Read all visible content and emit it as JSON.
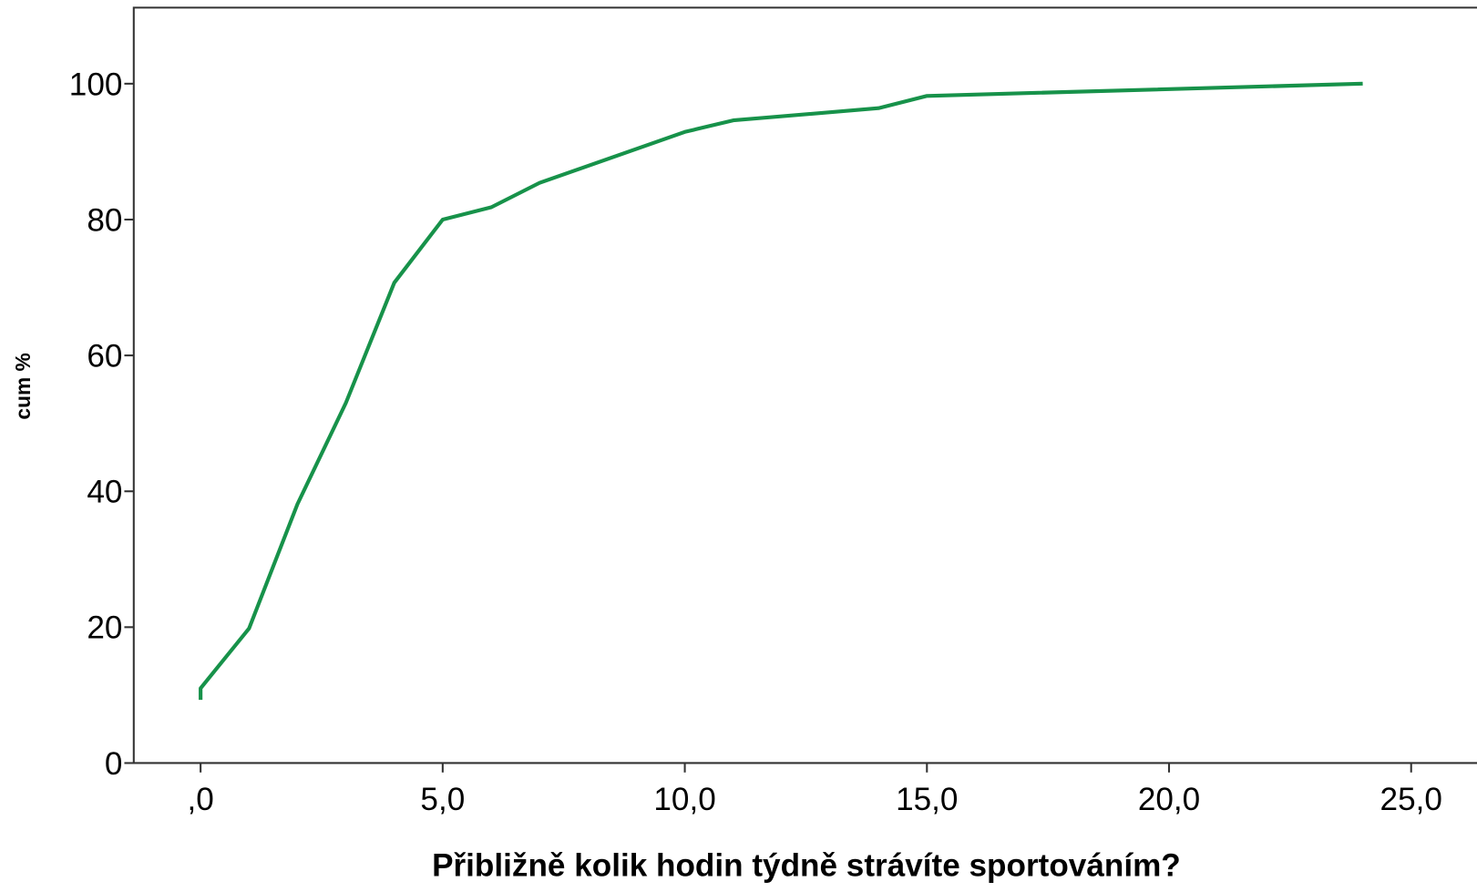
{
  "chart_data": {
    "type": "line",
    "x_label": "Přibližně kolik hodin týdně strávíte sportováním?",
    "y_label": "cum %",
    "x": [
      0,
      0,
      1,
      2,
      3,
      4,
      5,
      6,
      7,
      10,
      11,
      14,
      15,
      24
    ],
    "series": [
      {
        "name": "cum %",
        "color": "#17924a",
        "values": [
          9.3,
          11.0,
          19.8,
          38.1,
          53.0,
          70.7,
          80.0,
          81.8,
          85.4,
          92.9,
          94.6,
          96.4,
          98.2,
          100
        ]
      }
    ],
    "xlim": [
      -1.38,
      26.36
    ],
    "xticks": [
      {
        "value": 0,
        "label": ",0"
      },
      {
        "value": 5,
        "label": "5,0"
      },
      {
        "value": 10,
        "label": "10,0"
      },
      {
        "value": 15,
        "label": "15,0"
      },
      {
        "value": 20,
        "label": "20,0"
      },
      {
        "value": 25,
        "label": "25,0"
      }
    ],
    "ylim": [
      0,
      111.2
    ],
    "yticks": [
      0,
      20,
      40,
      60,
      80,
      100
    ]
  }
}
